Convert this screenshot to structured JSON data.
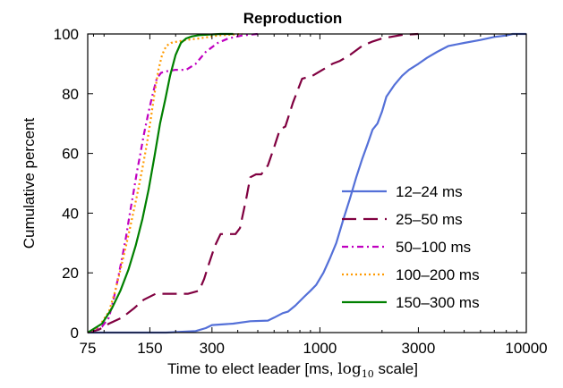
{
  "chart_data": {
    "type": "line",
    "title": "Reproduction",
    "xlabel": "Time to elect leader [ms, ",
    "xlabel_math": "log",
    "xlabel_sub": "10",
    "xlabel_end": " scale]",
    "ylabel": "Cumulative percent",
    "x_scale": "log10",
    "xlim": [
      75,
      10000
    ],
    "ylim": [
      0,
      100
    ],
    "x_ticks": [
      75,
      150,
      300,
      1000,
      3000,
      10000
    ],
    "x_tick_labels": [
      "75",
      "150",
      "300",
      "1000",
      "3000",
      "10000"
    ],
    "y_ticks": [
      0,
      20,
      40,
      60,
      80,
      100
    ],
    "y_tick_labels": [
      "0",
      "20",
      "40",
      "60",
      "80",
      "100"
    ],
    "grid": false,
    "legend_position": "lower-right",
    "series": [
      {
        "name": "12–24 ms",
        "color": "#5470d8",
        "dash": "solid",
        "x": [
          75,
          180,
          250,
          280,
          300,
          380,
          460,
          560,
          600,
          660,
          700,
          760,
          840,
          900,
          960,
          1040,
          1120,
          1200,
          1300,
          1400,
          1500,
          1600,
          1700,
          1800,
          1900,
          2000,
          2100,
          2300,
          2500,
          2700,
          3000,
          3300,
          3700,
          4200,
          5000,
          6000,
          7000,
          8000,
          8600,
          10000
        ],
        "y": [
          0,
          0,
          0.5,
          1.5,
          2.5,
          3,
          3.8,
          4,
          5,
          6.5,
          7,
          9,
          12,
          14,
          16,
          20,
          25,
          30,
          38,
          45,
          52,
          58,
          63,
          68,
          70,
          74,
          79,
          83,
          86,
          88,
          90,
          92,
          94,
          96,
          97,
          98,
          99,
          99.5,
          100,
          100
        ]
      },
      {
        "name": "25–50 ms",
        "color": "#800040",
        "dash": "long",
        "x": [
          75,
          85,
          95,
          110,
          125,
          140,
          160,
          190,
          230,
          260,
          275,
          290,
          310,
          330,
          360,
          390,
          410,
          440,
          460,
          490,
          520,
          560,
          600,
          640,
          680,
          740,
          820,
          920,
          1030,
          1150,
          1250,
          1400,
          1600,
          1800,
          2000,
          2200,
          2500,
          3000
        ],
        "y": [
          0,
          1,
          3,
          5,
          8,
          11,
          13,
          13,
          13,
          14,
          18,
          23,
          29,
          33,
          33,
          33,
          35,
          45,
          52,
          53,
          53,
          56,
          62,
          68,
          69,
          77,
          85,
          86,
          88,
          90,
          91,
          93,
          96,
          97.5,
          98.5,
          99,
          99.7,
          100
        ]
      },
      {
        "name": "50–100 ms",
        "color": "#c000c0",
        "dash": "dashdot",
        "x": [
          75,
          88,
          95,
          100,
          105,
          110,
          115,
          120,
          125,
          130,
          135,
          140,
          148,
          155,
          162,
          170,
          180,
          200,
          225,
          250,
          280,
          320,
          360,
          420,
          500
        ],
        "y": [
          0,
          2,
          5,
          11,
          18,
          25,
          32,
          40,
          47,
          54,
          60,
          66,
          74,
          80,
          85,
          87,
          87.5,
          88,
          88,
          90,
          94,
          97,
          98.5,
          99.5,
          100
        ]
      },
      {
        "name": "100–200 ms",
        "color": "#ff9a00",
        "dash": "dotted",
        "x": [
          75,
          85,
          95,
          102,
          108,
          115,
          122,
          130,
          138,
          145,
          152,
          158,
          165,
          172,
          180,
          190,
          205,
          225,
          260,
          320,
          420
        ],
        "y": [
          0,
          2,
          7,
          14,
          21,
          29,
          37,
          46,
          55,
          63,
          72,
          80,
          88,
          93,
          96,
          97,
          97.5,
          98,
          98.5,
          99.5,
          100
        ]
      },
      {
        "name": "150–300 ms",
        "color": "#008000",
        "dash": "solid",
        "x": [
          75,
          88,
          98,
          108,
          118,
          128,
          138,
          148,
          158,
          168,
          178,
          188,
          200,
          212,
          225,
          240,
          260,
          290,
          330,
          380
        ],
        "y": [
          0,
          3,
          8,
          14,
          21,
          29,
          38,
          48,
          59,
          70,
          78,
          86,
          93,
          97,
          98.5,
          99.2,
          99.6,
          99.8,
          100,
          100
        ]
      }
    ]
  }
}
